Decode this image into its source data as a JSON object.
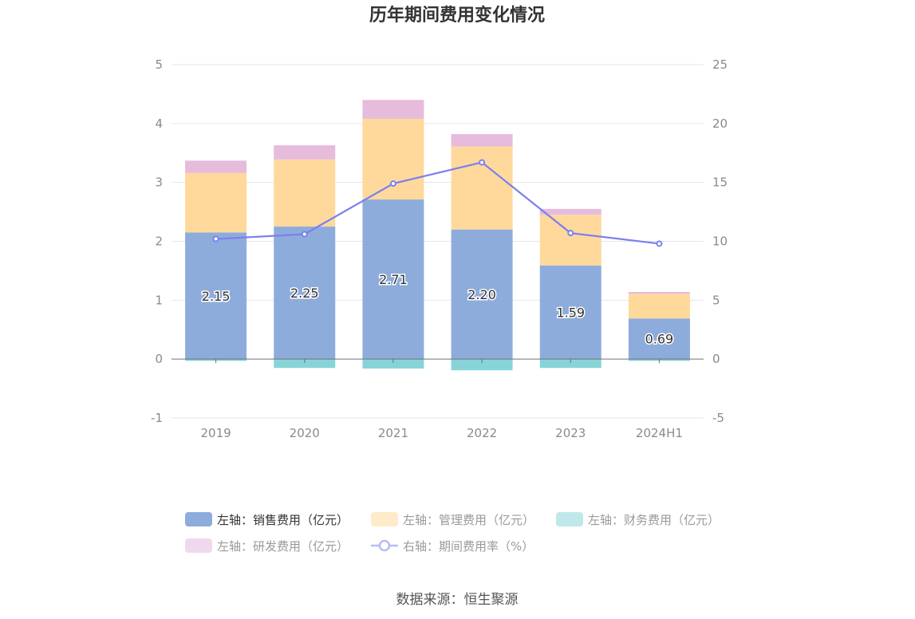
{
  "chart_data": {
    "type": "bar",
    "stacked": true,
    "title": "历年期间费用变化情况",
    "categories": [
      "2019",
      "2020",
      "2021",
      "2022",
      "2023",
      "2024H1"
    ],
    "y_left": {
      "ylim": [
        -1,
        5
      ],
      "ticks": [
        "-1",
        "0",
        "1",
        "2",
        "3",
        "4",
        "5"
      ]
    },
    "y_right": {
      "ylim": [
        -5,
        25
      ],
      "ticks": [
        "-5",
        "0",
        "5",
        "10",
        "15",
        "20",
        "25"
      ]
    },
    "grid": true,
    "legend_position": "bottom",
    "series": [
      {
        "name": "左轴：销售费用（亿元）",
        "axis": "left",
        "color": "#8eacdb",
        "values": [
          2.15,
          2.25,
          2.71,
          2.2,
          1.59,
          0.69
        ],
        "labels": [
          "2.15",
          "2.25",
          "2.71",
          "2.20",
          "1.59",
          "0.69"
        ]
      },
      {
        "name": "左轴：管理费用（亿元）",
        "axis": "left",
        "color": "#fed99b",
        "values": [
          1.01,
          1.14,
          1.37,
          1.41,
          0.86,
          0.42
        ]
      },
      {
        "name": "左轴：财务费用（亿元）",
        "axis": "left",
        "color": "#86d4d8",
        "values": [
          -0.03,
          -0.15,
          -0.16,
          -0.19,
          -0.15,
          -0.03
        ]
      },
      {
        "name": "左轴：研发费用（亿元）",
        "axis": "left",
        "color": "#e6bbdc",
        "values": [
          0.21,
          0.24,
          0.32,
          0.21,
          0.1,
          0.03
        ]
      },
      {
        "name": "右轴：期间费用率（%）",
        "axis": "right",
        "type": "line",
        "color": "#7b7fef",
        "values": [
          10.2,
          10.6,
          14.9,
          16.7,
          10.7,
          9.8
        ]
      }
    ]
  },
  "legend_colors_inactive": {
    "左轴：管理费用（亿元）": "#feebc9",
    "左轴：财务费用（亿元）": "#c0e8ea",
    "左轴：研发费用（亿元）": "#f0d9ec",
    "右轴：期间费用率（%）": "#b9bbf6"
  },
  "source": "数据来源：恒生聚源"
}
